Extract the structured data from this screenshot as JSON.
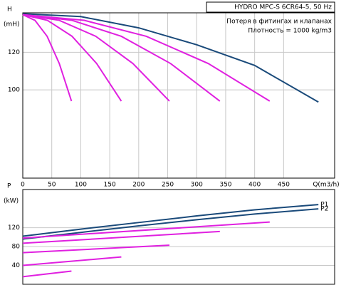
{
  "chart_data": [
    {
      "type": "line",
      "y_label": "H",
      "y_unit": "(mH)",
      "x_label": "Q(m3/h)",
      "title": "HYDRO MPC-S 6CR64-5, 50 Hz",
      "annotations": [
        "Потеря в фитингах и клапанах",
        "Плотность = 1000 kg/m3"
      ],
      "xlim": [
        0,
        538
      ],
      "ylim": [
        53,
        141
      ],
      "xticks": [
        0,
        50,
        100,
        150,
        200,
        250,
        300,
        350,
        400,
        450
      ],
      "yticks": [
        100,
        120
      ],
      "grid": true,
      "series": [
        {
          "color": "#1a4a7a",
          "x": [
            0,
            100,
            200,
            300,
            400,
            510
          ],
          "values": [
            140.5,
            139,
            133,
            124,
            113,
            93.5
          ]
        },
        {
          "color": "#e020e0",
          "x": [
            0,
            21,
            42,
            63,
            84
          ],
          "values": [
            140,
            137,
            128.5,
            114,
            94
          ]
        },
        {
          "color": "#e020e0",
          "x": [
            0,
            42.5,
            85,
            127.5,
            170
          ],
          "values": [
            140,
            137,
            128.5,
            114,
            94
          ]
        },
        {
          "color": "#e020e0",
          "x": [
            0,
            63,
            126,
            190,
            253
          ],
          "values": [
            140,
            137,
            128.5,
            114,
            94
          ]
        },
        {
          "color": "#e020e0",
          "x": [
            0,
            85,
            170,
            255,
            340
          ],
          "values": [
            140,
            137,
            128.5,
            114,
            94
          ]
        },
        {
          "color": "#e020e0",
          "x": [
            0,
            106,
            213,
            320,
            426
          ],
          "values": [
            140,
            137,
            128.5,
            114,
            94
          ]
        }
      ]
    },
    {
      "type": "line",
      "y_label": "P",
      "y_unit": "(kW)",
      "xlim": [
        0,
        538
      ],
      "ylim": [
        0,
        201
      ],
      "yticks": [
        40,
        80,
        120
      ],
      "grid": true,
      "series": [
        {
          "name": "P1",
          "color": "#1a4a7a",
          "x": [
            0,
            100,
            200,
            300,
            400,
            510
          ],
          "values": [
            102,
            117,
            131,
            145,
            158,
            169
          ]
        },
        {
          "name": "P2",
          "color": "#1a4a7a",
          "x": [
            0,
            100,
            200,
            300,
            400,
            510
          ],
          "values": [
            96,
            110,
            124,
            137,
            149,
            160
          ]
        },
        {
          "color": "#e020e0",
          "x": [
            0,
            84
          ],
          "values": [
            16,
            28
          ]
        },
        {
          "color": "#e020e0",
          "x": [
            0,
            170
          ],
          "values": [
            40,
            58
          ]
        },
        {
          "color": "#e020e0",
          "x": [
            0,
            253
          ],
          "values": [
            67,
            83
          ]
        },
        {
          "color": "#e020e0",
          "x": [
            0,
            340
          ],
          "values": [
            87,
            112
          ]
        },
        {
          "color": "#e020e0",
          "x": [
            0,
            426
          ],
          "values": [
            98,
            132
          ]
        }
      ]
    }
  ]
}
